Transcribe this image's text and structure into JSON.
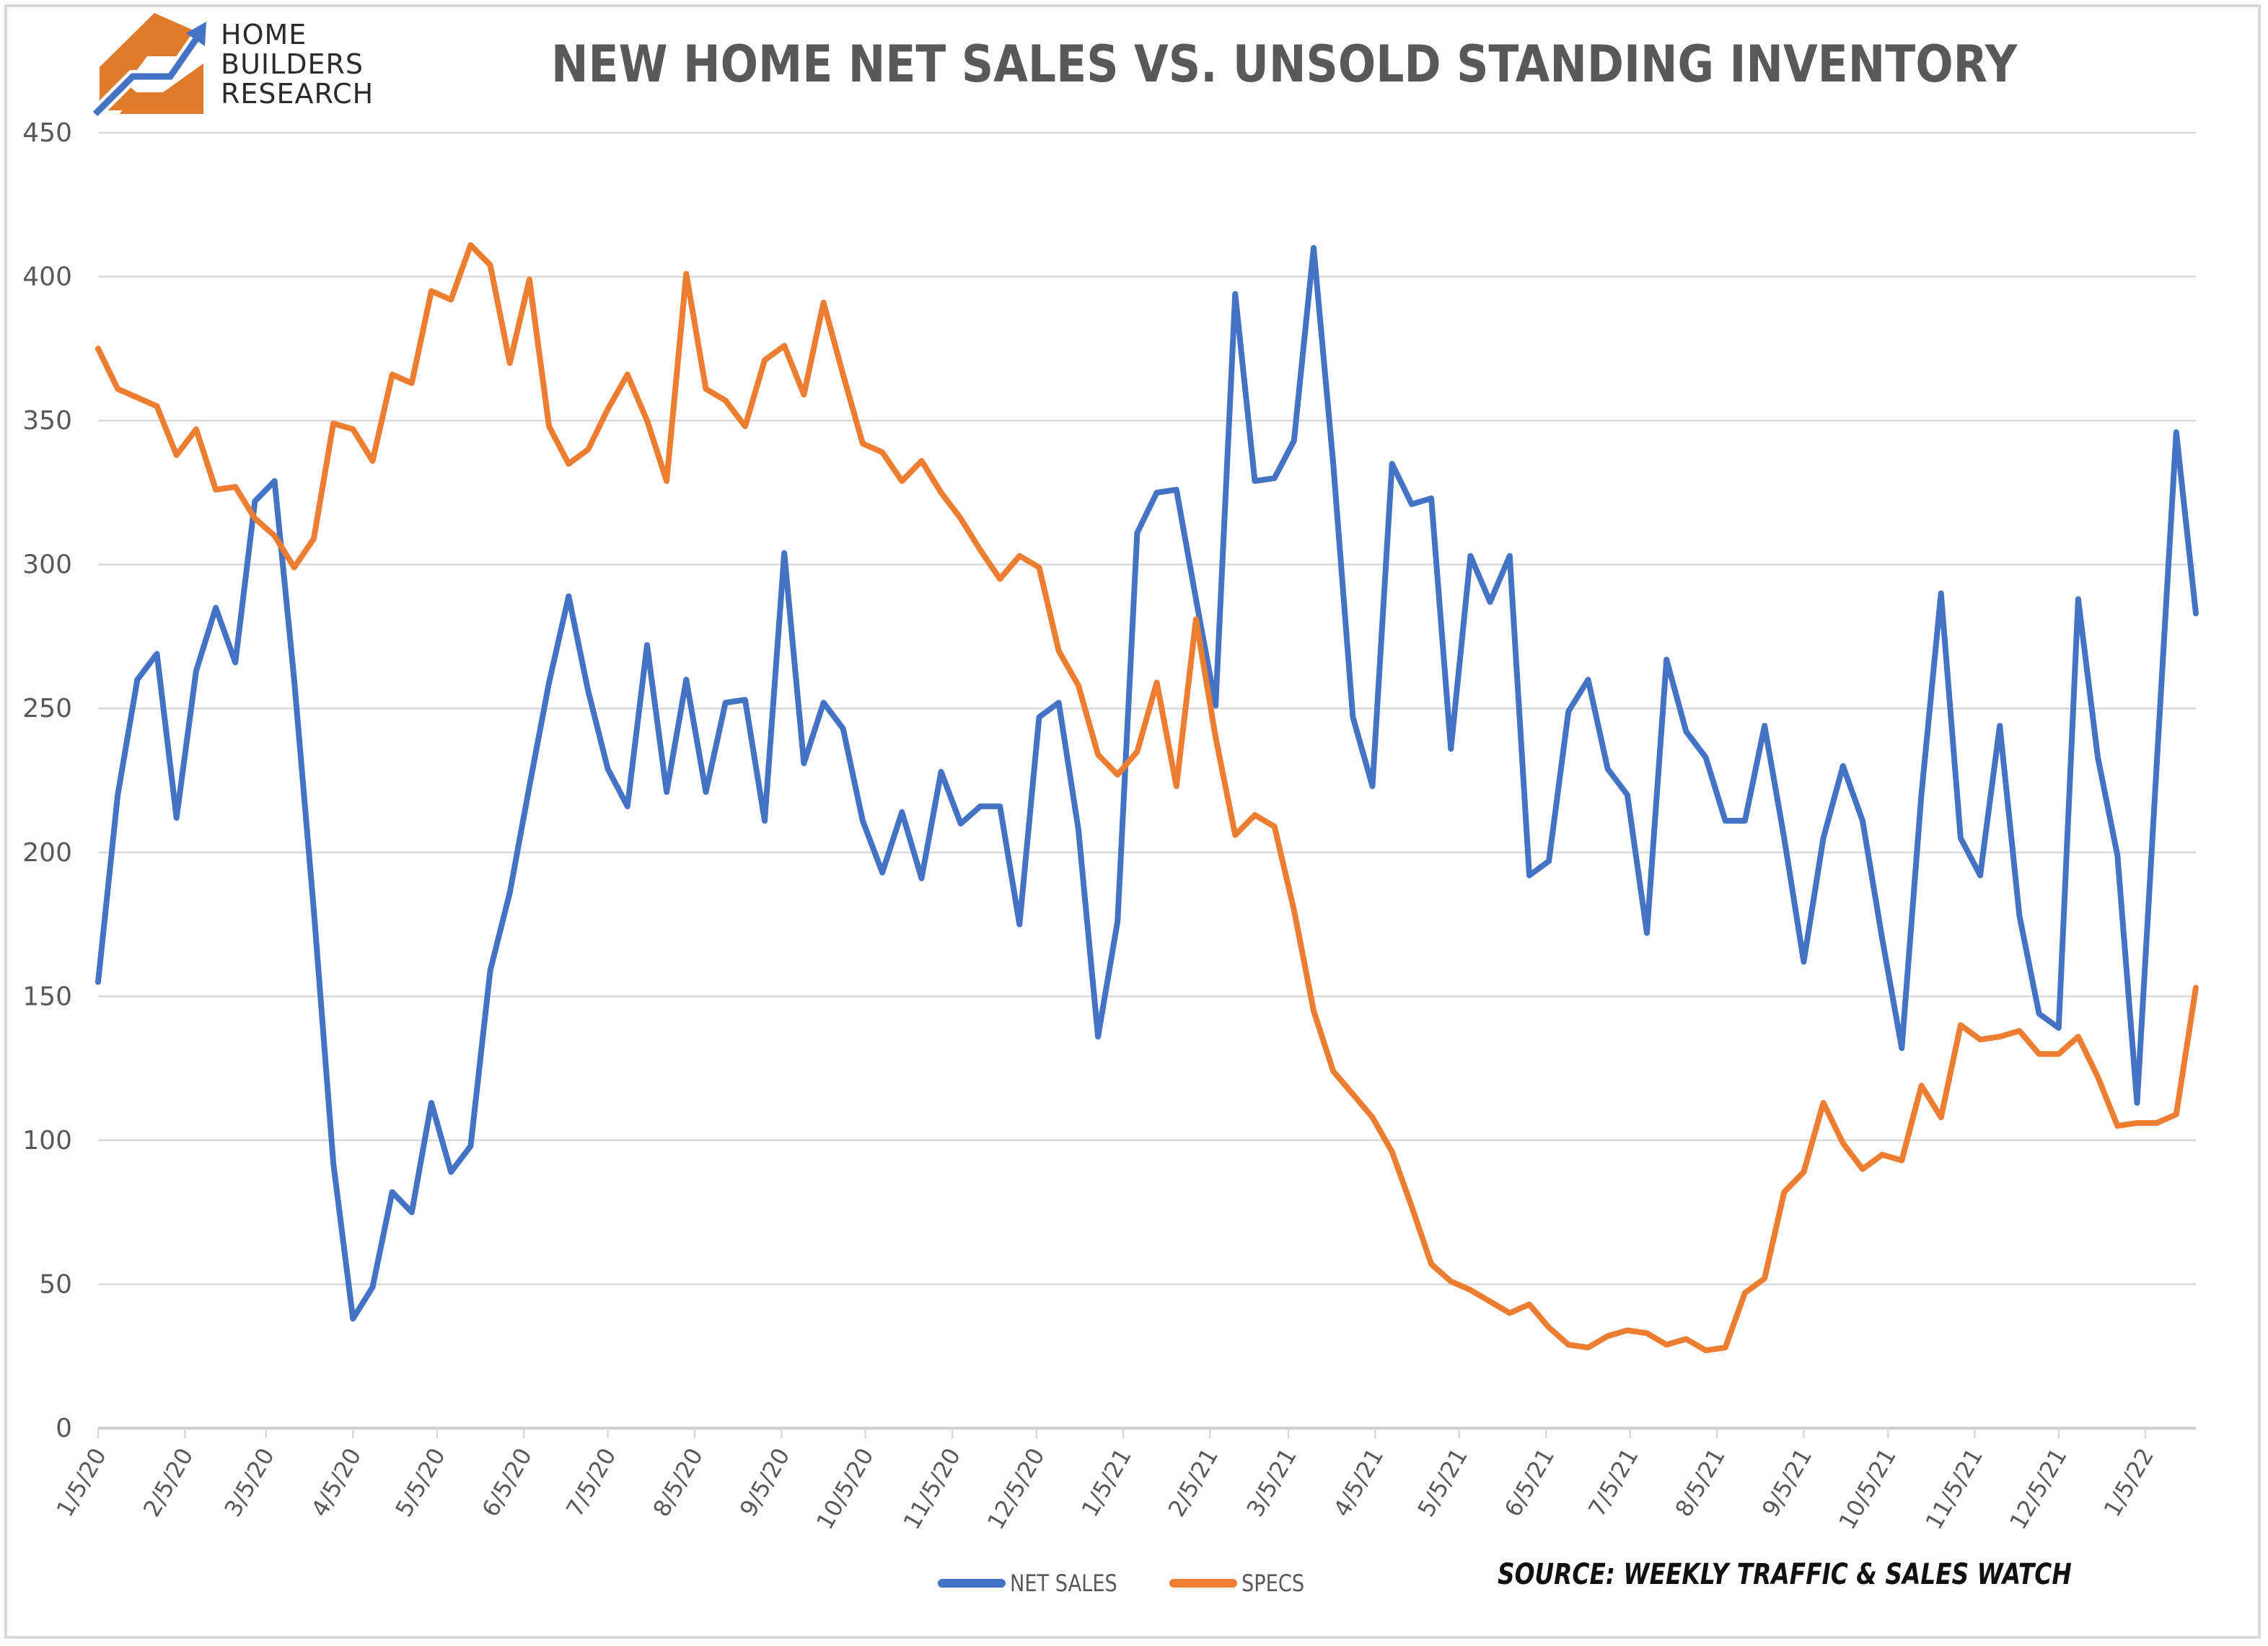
{
  "logo": {
    "lines": [
      "HOME",
      "BUILDERS",
      "RESEARCH"
    ]
  },
  "chart_data": {
    "type": "line",
    "title": "NEW HOME NET SALES VS. UNSOLD STANDING INVENTORY",
    "source": "SOURCE: WEEKLY TRAFFIC & SALES WATCH",
    "xlabel": "",
    "ylabel": "",
    "ylim": [
      0,
      450
    ],
    "yticks": [
      0,
      50,
      100,
      150,
      200,
      250,
      300,
      350,
      400,
      450
    ],
    "grid": true,
    "legend_position": "bottom",
    "x_tick_labels": [
      "1/5/20",
      "2/5/20",
      "3/5/20",
      "4/5/20",
      "5/5/20",
      "6/5/20",
      "7/5/20",
      "8/5/20",
      "9/5/20",
      "10/5/20",
      "11/5/20",
      "12/5/20",
      "1/5/21",
      "2/5/21",
      "3/5/21",
      "4/5/21",
      "5/5/21",
      "6/5/21",
      "7/5/21",
      "8/5/21",
      "9/5/21",
      "10/5/21",
      "11/5/21",
      "12/5/21",
      "1/5/22"
    ],
    "x_tick_weeks": [
      0,
      4.43,
      8.57,
      13,
      17.29,
      21.71,
      26,
      30.43,
      34.86,
      39.14,
      43.57,
      47.86,
      52.29,
      56.71,
      60.71,
      65.14,
      69.43,
      73.86,
      78.14,
      82.57,
      87,
      91.29,
      95.71,
      100,
      104.43
    ],
    "series": [
      {
        "name": "NET SALES",
        "color": "#4472c4",
        "values": [
          155,
          220,
          260,
          269,
          212,
          263,
          285,
          266,
          322,
          329,
          260,
          180,
          92,
          38,
          49,
          82,
          75,
          113,
          89,
          98,
          159,
          186,
          223,
          259,
          289,
          256,
          229,
          216,
          272,
          221,
          260,
          221,
          252,
          253,
          211,
          304,
          231,
          252,
          243,
          211,
          193,
          214,
          191,
          228,
          210,
          216,
          216,
          175,
          247,
          252,
          208,
          136,
          176,
          311,
          325,
          326,
          288,
          251,
          394,
          329,
          330,
          343,
          410,
          335,
          247,
          223,
          335,
          321,
          323,
          236,
          303,
          287,
          303,
          192,
          197,
          249,
          260,
          229,
          220,
          172,
          267,
          242,
          233,
          211,
          211,
          244,
          205,
          162,
          205,
          230,
          211,
          170,
          132,
          220,
          290,
          205,
          192,
          244,
          178,
          144,
          139,
          288,
          233,
          199,
          113,
          230,
          346,
          283
        ]
      },
      {
        "name": "SPECS",
        "color": "#ed7d31",
        "values": [
          375,
          361,
          358,
          355,
          338,
          347,
          326,
          327,
          316,
          310,
          299,
          309,
          349,
          347,
          336,
          366,
          363,
          395,
          392,
          411,
          404,
          370,
          399,
          348,
          335,
          340,
          354,
          366,
          350,
          329,
          401,
          361,
          357,
          348,
          371,
          376,
          359,
          391,
          366,
          342,
          339,
          329,
          336,
          325,
          316,
          305,
          295,
          303,
          299,
          270,
          258,
          234,
          227,
          235,
          259,
          223,
          281,
          240,
          206,
          213,
          209,
          180,
          145,
          124,
          116,
          108,
          96,
          77,
          57,
          51,
          48,
          44,
          40,
          43,
          35,
          29,
          28,
          32,
          34,
          33,
          29,
          31,
          27,
          28,
          47,
          52,
          82,
          89,
          113,
          99,
          90,
          95,
          93,
          119,
          108,
          140,
          135,
          136,
          138,
          130,
          130,
          136,
          122,
          105,
          106,
          106,
          109,
          153
        ]
      }
    ]
  },
  "colors": {
    "logo_orange": "#e07b2b",
    "logo_blue": "#4472c4",
    "grid": "#d9d9d9",
    "axis_text": "#595959"
  }
}
